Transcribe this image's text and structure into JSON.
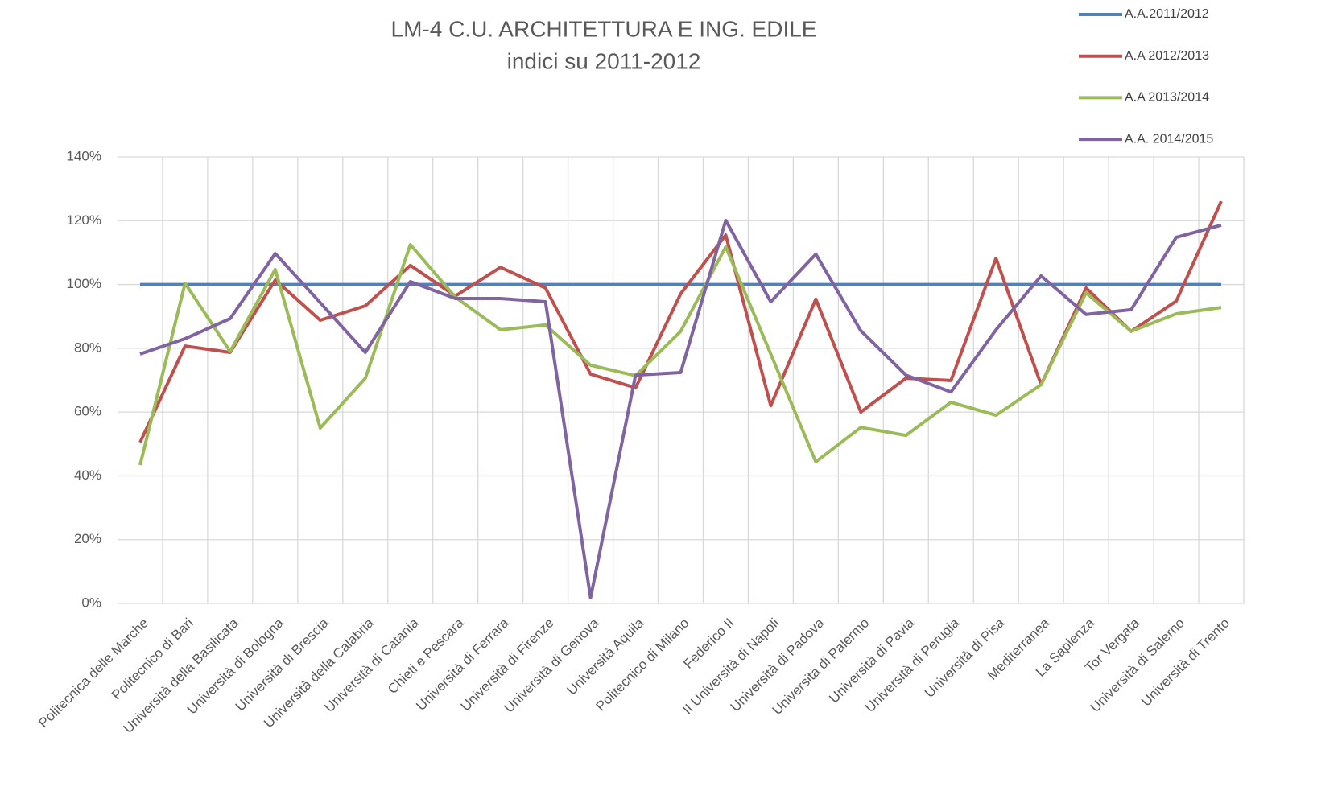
{
  "chart_data": {
    "type": "line",
    "title": "LM-4 C.U. ARCHITETTURA E ING. EDILE",
    "subtitle": "indici su 2011-2012",
    "categories": [
      "Politecnica delle Marche",
      "Politecnico di Bari",
      "Università della Basilicata",
      "Università di Bologna",
      "Università di Brescia",
      "Università della Calabria",
      "Università di Catania",
      "Chieti e Pescara",
      "Università di Ferrara",
      "Università di Firenze",
      "Università di Genova",
      "Università Aquila",
      "Politecnico di Milano",
      "Federico II",
      "II Università di Napoli",
      "Università di Padova",
      "Università di Palermo",
      "Università di Pavia",
      "Università di Perugia",
      "Università di Pisa",
      "Mediterranea",
      "La Sapienza",
      "Tor Vergata",
      "Università di Salerno",
      "Università di Trento"
    ],
    "series": [
      {
        "name": "A.A.2011/2012",
        "color": "#4f81bd",
        "values": [
          100,
          100,
          100,
          100,
          100,
          100,
          100,
          100,
          100,
          100,
          100,
          100,
          100,
          100,
          100,
          100,
          100,
          100,
          100,
          100,
          100,
          100,
          100,
          100,
          100
        ]
      },
      {
        "name": "A.A 2012/2013",
        "color": "#c0504d",
        "values": [
          50.5,
          80.7,
          78.7,
          101.4,
          88.8,
          93.3,
          106,
          96.4,
          105.4,
          98.9,
          71.9,
          67.6,
          97.1,
          115.5,
          62,
          95.4,
          60,
          70.6,
          69.9,
          108.2,
          68.6,
          98.9,
          85.3,
          94.8,
          126.1
        ]
      },
      {
        "name": "A.A 2013/2014",
        "color": "#9bbb59",
        "values": [
          43.4,
          100.4,
          79,
          104.7,
          55,
          70.6,
          112.5,
          96,
          85.8,
          87.3,
          74.7,
          71.4,
          85.3,
          111.8,
          78.2,
          44.4,
          55.2,
          52.7,
          63.1,
          59,
          68.6,
          97.4,
          85.3,
          90.8,
          92.8
        ]
      },
      {
        "name": "A.A. 2014/2015",
        "color": "#8064a2",
        "values": [
          78.2,
          83,
          89.3,
          109.7,
          94.3,
          78.7,
          100.9,
          95.6,
          95.6,
          94.6,
          1.8,
          71.6,
          72.4,
          120.1,
          94.6,
          109.5,
          85.5,
          71.6,
          66.3,
          85.8,
          102.7,
          90.6,
          92.1,
          114.8,
          118.6
        ]
      }
    ],
    "ylim": [
      0,
      140
    ],
    "yticks": [
      {
        "value": 0,
        "label": "0%"
      },
      {
        "value": 20,
        "label": "20%"
      },
      {
        "value": 40,
        "label": "40%"
      },
      {
        "value": 60,
        "label": "60%"
      },
      {
        "value": 80,
        "label": "80%"
      },
      {
        "value": 100,
        "label": "100%"
      },
      {
        "value": 120,
        "label": "120%"
      },
      {
        "value": 140,
        "label": "140%"
      }
    ],
    "grid": true,
    "legend": "top-right"
  }
}
